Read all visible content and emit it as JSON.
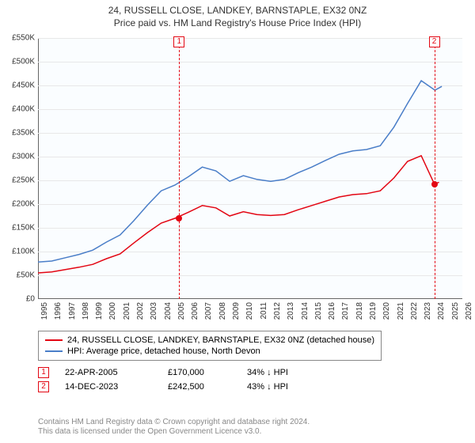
{
  "title": "24, RUSSELL CLOSE, LANDKEY, BARNSTAPLE, EX32 0NZ",
  "subtitle": "Price paid vs. HM Land Registry's House Price Index (HPI)",
  "chart": {
    "type": "line",
    "background_color": "#fafdff",
    "grid_color": "#e8e8e8",
    "axis_color": "#666666",
    "label_fontsize": 10,
    "title_fontsize": 12,
    "x": {
      "min": 1995,
      "max": 2026,
      "ticks": [
        1995,
        1996,
        1997,
        1998,
        1999,
        2000,
        2001,
        2002,
        2003,
        2004,
        2005,
        2006,
        2007,
        2008,
        2009,
        2010,
        2011,
        2012,
        2013,
        2014,
        2015,
        2016,
        2017,
        2018,
        2019,
        2020,
        2021,
        2022,
        2023,
        2024,
        2025,
        2026
      ]
    },
    "y": {
      "min": 0,
      "max": 550000,
      "labels": [
        "£0",
        "£50K",
        "£100K",
        "£150K",
        "£200K",
        "£250K",
        "£300K",
        "£350K",
        "£400K",
        "£450K",
        "£500K",
        "£550K"
      ],
      "tick_step": 50000
    },
    "series": [
      {
        "name": "24, RUSSELL CLOSE, LANDKEY, BARNSTAPLE, EX32 0NZ (detached house)",
        "color": "#e30613",
        "line_width": 1.5,
        "points": [
          [
            1995,
            55000
          ],
          [
            1996,
            57000
          ],
          [
            1997,
            62000
          ],
          [
            1998,
            67000
          ],
          [
            1999,
            73000
          ],
          [
            2000,
            85000
          ],
          [
            2001,
            95000
          ],
          [
            2002,
            118000
          ],
          [
            2003,
            140000
          ],
          [
            2004,
            160000
          ],
          [
            2005,
            170000
          ],
          [
            2006,
            183000
          ],
          [
            2007,
            197000
          ],
          [
            2008,
            192000
          ],
          [
            2009,
            175000
          ],
          [
            2010,
            184000
          ],
          [
            2011,
            178000
          ],
          [
            2012,
            176000
          ],
          [
            2013,
            178000
          ],
          [
            2014,
            188000
          ],
          [
            2015,
            197000
          ],
          [
            2016,
            206000
          ],
          [
            2017,
            215000
          ],
          [
            2018,
            220000
          ],
          [
            2019,
            222000
          ],
          [
            2020,
            228000
          ],
          [
            2021,
            255000
          ],
          [
            2022,
            290000
          ],
          [
            2023,
            302000
          ],
          [
            2023.95,
            242500
          ],
          [
            2024.3,
            246000
          ]
        ]
      },
      {
        "name": "HPI: Average price, detached house, North Devon",
        "color": "#4a7ec8",
        "line_width": 1.5,
        "points": [
          [
            1995,
            78000
          ],
          [
            1996,
            80000
          ],
          [
            1997,
            87000
          ],
          [
            1998,
            94000
          ],
          [
            1999,
            103000
          ],
          [
            2000,
            120000
          ],
          [
            2001,
            135000
          ],
          [
            2002,
            165000
          ],
          [
            2003,
            198000
          ],
          [
            2004,
            228000
          ],
          [
            2005,
            240000
          ],
          [
            2006,
            258000
          ],
          [
            2007,
            278000
          ],
          [
            2008,
            270000
          ],
          [
            2009,
            248000
          ],
          [
            2010,
            260000
          ],
          [
            2011,
            252000
          ],
          [
            2012,
            248000
          ],
          [
            2013,
            252000
          ],
          [
            2014,
            266000
          ],
          [
            2015,
            278000
          ],
          [
            2016,
            292000
          ],
          [
            2017,
            305000
          ],
          [
            2018,
            312000
          ],
          [
            2019,
            315000
          ],
          [
            2020,
            323000
          ],
          [
            2021,
            362000
          ],
          [
            2022,
            412000
          ],
          [
            2023,
            460000
          ],
          [
            2024,
            440000
          ],
          [
            2024.5,
            448000
          ]
        ]
      }
    ],
    "markers": [
      {
        "n": "1",
        "x": 2005.31,
        "color": "#e30613",
        "dot_y": 170000
      },
      {
        "n": "2",
        "x": 2023.95,
        "color": "#e30613",
        "dot_y": 242500
      }
    ]
  },
  "legend": {
    "series1": "24, RUSSELL CLOSE, LANDKEY, BARNSTAPLE, EX32 0NZ (detached house)",
    "series2": "HPI: Average price, detached house, North Devon"
  },
  "events": [
    {
      "n": "1",
      "color": "#e30613",
      "date": "22-APR-2005",
      "price": "£170,000",
      "diff": "34% ↓ HPI"
    },
    {
      "n": "2",
      "color": "#e30613",
      "date": "14-DEC-2023",
      "price": "£242,500",
      "diff": "43% ↓ HPI"
    }
  ],
  "footer": {
    "line1": "Contains HM Land Registry data © Crown copyright and database right 2024.",
    "line2": "This data is licensed under the Open Government Licence v3.0."
  }
}
